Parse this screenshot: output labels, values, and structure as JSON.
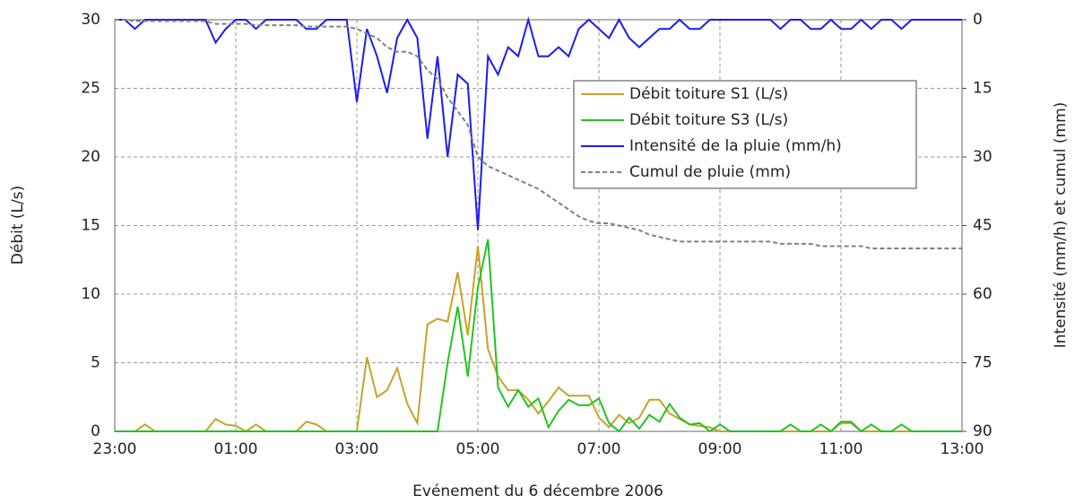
{
  "chart_data": {
    "type": "line",
    "x_label": "Evénement du 6 décembre 2006",
    "y_label": "Débit (L/s)",
    "y2_label": "Intensité (mm/h) et cumul (mm)",
    "x": [
      0,
      10,
      20,
      30,
      40,
      50,
      60,
      70,
      80,
      90,
      100,
      110,
      120,
      130,
      140,
      150,
      160,
      170,
      180,
      190,
      200,
      210,
      220,
      230,
      240,
      250,
      260,
      270,
      280,
      290,
      300,
      310,
      320,
      330,
      340,
      350,
      360,
      370,
      380,
      390,
      400,
      410,
      420,
      430,
      440,
      450,
      460,
      470,
      480,
      490,
      500,
      510,
      520,
      530,
      540,
      550,
      560,
      570,
      580,
      590,
      600,
      610,
      620,
      630,
      640,
      650,
      660,
      670,
      680,
      690,
      700,
      710,
      720,
      730,
      740,
      750,
      760,
      770,
      780,
      790,
      800,
      810,
      820,
      830,
      840
    ],
    "xlim": [
      0,
      840
    ],
    "xticks": [
      {
        "value": 0,
        "label": "23:00"
      },
      {
        "value": 120,
        "label": "01:00"
      },
      {
        "value": 240,
        "label": "03:00"
      },
      {
        "value": 360,
        "label": "05:00"
      },
      {
        "value": 480,
        "label": "07:00"
      },
      {
        "value": 600,
        "label": "09:00"
      },
      {
        "value": 720,
        "label": "11:00"
      },
      {
        "value": 840,
        "label": "13:00"
      }
    ],
    "ylim": [
      0,
      30
    ],
    "yticks": [
      0,
      5,
      10,
      15,
      20,
      25,
      30
    ],
    "y2lim": [
      90,
      0
    ],
    "y2ticks": [
      0,
      15,
      30,
      45,
      60,
      75,
      90
    ],
    "grid": true,
    "legend": "upper right",
    "series": [
      {
        "name": "Débit toiture S1 (L/s)",
        "color": "#c9a227",
        "dash": false,
        "values": [
          0,
          0,
          0,
          0.5,
          0,
          0,
          0,
          0,
          0,
          0,
          0.9,
          0.5,
          0.4,
          0,
          0.5,
          0,
          0,
          0,
          0,
          0.7,
          0.5,
          0,
          0,
          0,
          0,
          5.4,
          2.5,
          3,
          4.6,
          2,
          0.6,
          7.8,
          8.2,
          8,
          11.6,
          7,
          13.5,
          6,
          4,
          3,
          3,
          2.3,
          1.3,
          2.2,
          3.2,
          2.6,
          2.6,
          2.6,
          1,
          0.3,
          1.2,
          0.6,
          1,
          2.3,
          2.3,
          1.3,
          0.9,
          0.5,
          0.4,
          0.3,
          0,
          0,
          0,
          0,
          0,
          0,
          0,
          0,
          0,
          0,
          0,
          0,
          0.6,
          0.6,
          0,
          0,
          0,
          0,
          0,
          0,
          0,
          0,
          0,
          0,
          0
        ]
      },
      {
        "name": "Débit toiture S3 (L/s)",
        "color": "#22c422",
        "dash": false,
        "values": [
          0,
          0,
          0,
          0,
          0,
          0,
          0,
          0,
          0,
          0,
          0,
          0,
          0,
          0,
          0,
          0,
          0,
          0,
          0,
          0,
          0,
          0,
          0,
          0,
          0,
          0,
          0,
          0,
          0,
          0,
          0,
          0,
          0,
          5,
          9.1,
          4,
          10.5,
          14,
          3.2,
          1.8,
          3,
          1.8,
          2.4,
          0.3,
          1.5,
          2.3,
          1.9,
          1.9,
          2.4,
          0.6,
          0,
          1,
          0.2,
          1.2,
          0.7,
          2,
          1,
          0.5,
          0.6,
          0,
          0.5,
          0,
          0,
          0,
          0,
          0,
          0,
          0.5,
          0,
          0,
          0.5,
          0,
          0.7,
          0.7,
          0,
          0.5,
          0,
          0,
          0.5,
          0,
          0,
          0,
          0,
          0,
          0
        ]
      },
      {
        "name": "Intensité de la pluie (mm/h)",
        "color": "#1c1cf0",
        "dash": false,
        "axis": "y2",
        "values": [
          0,
          0,
          2,
          0,
          0,
          0,
          0,
          0,
          0,
          0,
          5,
          2,
          0,
          0,
          2,
          0,
          0,
          0,
          0,
          2,
          2,
          0,
          0,
          0,
          18,
          2,
          8,
          16,
          4,
          0,
          4,
          26,
          8,
          30,
          12,
          14,
          46,
          8,
          12,
          6,
          8,
          0,
          8,
          8,
          6,
          8,
          2,
          0,
          2,
          4,
          0,
          4,
          6,
          4,
          2,
          2,
          0,
          2,
          2,
          0,
          0,
          0,
          0,
          0,
          0,
          0,
          2,
          0,
          0,
          2,
          2,
          0,
          2,
          2,
          0,
          2,
          0,
          0,
          2,
          0,
          0,
          0,
          0,
          0,
          0
        ]
      },
      {
        "name": "Cumul de pluie (mm)",
        "color": "#808080",
        "dash": true,
        "axis": "y2",
        "values": [
          0,
          0,
          0.3,
          0.3,
          0.3,
          0.3,
          0.3,
          0.3,
          0.3,
          0.3,
          0.9,
          0.9,
          0.9,
          0.9,
          1.2,
          1.2,
          1.2,
          1.2,
          1.2,
          1.5,
          1.5,
          1.5,
          1.5,
          1.5,
          2,
          3,
          4,
          6,
          7,
          7,
          8,
          11,
          13,
          17,
          20,
          23,
          30,
          32,
          33,
          34,
          35,
          36,
          37,
          38.5,
          40,
          41.5,
          43,
          44,
          44.5,
          44.5,
          45,
          45.5,
          46,
          47,
          47.5,
          48,
          48.5,
          48.5,
          48.5,
          48.5,
          48.5,
          48.5,
          48.5,
          48.5,
          48.5,
          48.5,
          49,
          49,
          49,
          49,
          49.5,
          49.5,
          49.5,
          49.5,
          49.5,
          50,
          50,
          50,
          50,
          50,
          50,
          50,
          50,
          50,
          50
        ]
      }
    ]
  }
}
